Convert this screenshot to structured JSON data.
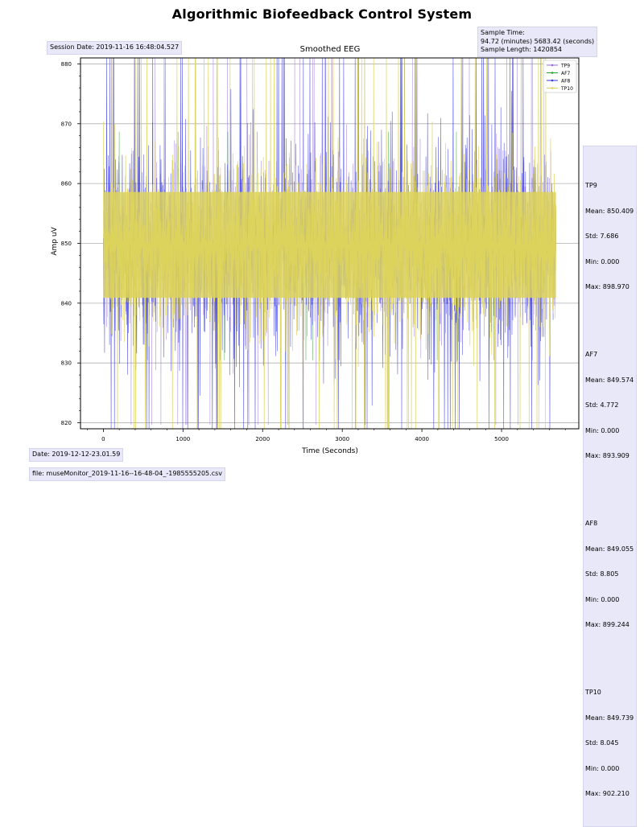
{
  "main_title": "Algorithmic Biofeedback Control System",
  "session_date": "Session Date: 2019-11-16 16:48:04.527",
  "sample_info": {
    "line1": "Sample Time:",
    "line2": "94.72 (minutes) 5683.42 (seconds)",
    "line3": "Sample Length: 1420854"
  },
  "stats": [
    {
      "name": "TP9",
      "mean": "Mean: 850.409",
      "std": "Std: 7.686",
      "min": "Min: 0.000",
      "max": "Max: 898.970"
    },
    {
      "name": "AF7",
      "mean": "Mean: 849.574",
      "std": "Std: 4.772",
      "min": "Min: 0.000",
      "max": "Max: 893.909"
    },
    {
      "name": "AF8",
      "mean": "Mean: 849.055",
      "std": "Std: 8.805",
      "min": "Min: 0.000",
      "max": "Max: 899.244"
    },
    {
      "name": "TP10",
      "mean": "Mean: 849.739",
      "std": "Std: 8.045",
      "min": "Min: 0.000",
      "max": "Max: 902.210"
    }
  ],
  "footer_date": "Date: 2019-12-12-23.01.59",
  "footer_file": "file: museMonitor_2019-11-16--16-48-04_-1985555205.csv",
  "colors": {
    "TP9": "#9370db",
    "AF7": "#2ca02c",
    "AF8": "#3a3ae0",
    "TP10": "#ddd35c",
    "info_bg": "#e8e8f8",
    "grid": "#b0b0b0"
  },
  "chart_data": {
    "type": "line",
    "title": "Smoothed EEG",
    "xlabel": "Time (Seconds)",
    "ylabel": "Amp uV",
    "xlim": [
      -287,
      5970
    ],
    "ylim": [
      819,
      881
    ],
    "xticks": [
      0,
      1000,
      2000,
      3000,
      4000,
      5000
    ],
    "xtick_labels": [
      "0",
      "1000",
      "2000",
      "3000",
      "4000",
      "5000"
    ],
    "yticks": [
      820,
      830,
      840,
      850,
      860,
      870,
      880
    ],
    "ytick_labels": [
      "820",
      "830",
      "840",
      "850",
      "860",
      "870",
      "880"
    ],
    "x_range": [
      0,
      5683.42
    ],
    "grid": "horizontal",
    "legend_position": "top-right",
    "series": [
      {
        "name": "TP9",
        "mean": 850.409,
        "std": 7.686,
        "min": 0.0,
        "max": 898.97
      },
      {
        "name": "AF7",
        "mean": 849.574,
        "std": 4.772,
        "min": 0.0,
        "max": 893.909
      },
      {
        "name": "AF8",
        "mean": 849.055,
        "std": 8.805,
        "min": 0.0,
        "max": 899.244
      },
      {
        "name": "TP10",
        "mean": 849.739,
        "std": 8.045,
        "min": 0.0,
        "max": 902.21
      }
    ]
  }
}
